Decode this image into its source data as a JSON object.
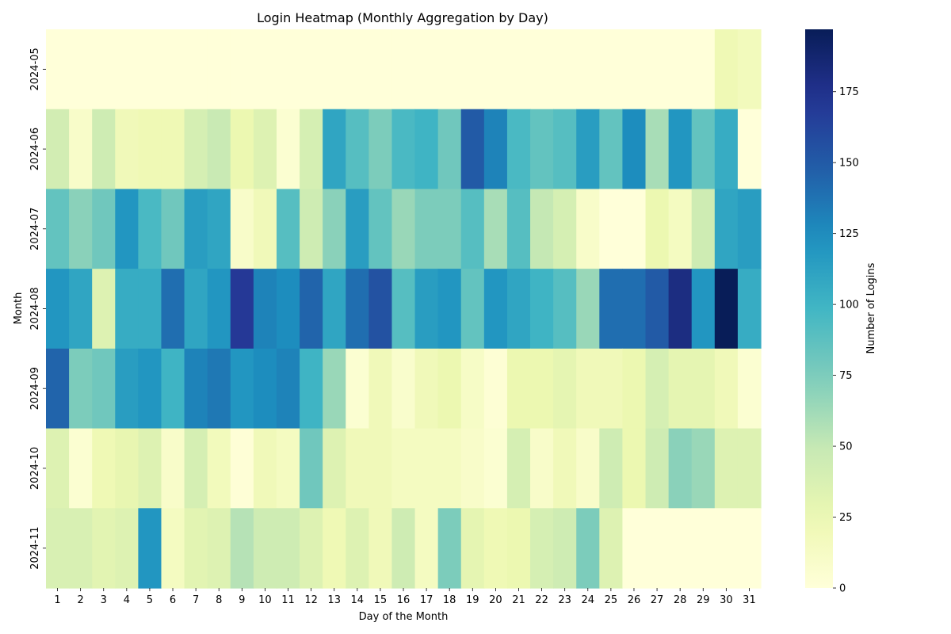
{
  "chart_data": {
    "type": "heatmap",
    "title": "Login Heatmap (Monthly Aggregation by Day)",
    "xlabel": "Day of the Month",
    "ylabel": "Month",
    "colorbar_label": "Number of Logins",
    "colormap": "YlGnBu",
    "vmin": 0,
    "vmax": 197,
    "colorbar_ticks": [
      "0",
      "25",
      "50",
      "75",
      "100",
      "125",
      "150",
      "175"
    ],
    "x_categories": [
      "1",
      "2",
      "3",
      "4",
      "5",
      "6",
      "7",
      "8",
      "9",
      "10",
      "11",
      "12",
      "13",
      "14",
      "15",
      "16",
      "17",
      "18",
      "19",
      "20",
      "21",
      "22",
      "23",
      "24",
      "25",
      "26",
      "27",
      "28",
      "29",
      "30",
      "31"
    ],
    "y_categories": [
      "2024-05",
      "2024-06",
      "2024-07",
      "2024-08",
      "2024-09",
      "2024-10",
      "2024-11"
    ],
    "values": [
      [
        0,
        0,
        0,
        0,
        0,
        0,
        0,
        0,
        0,
        0,
        0,
        0,
        0,
        0,
        0,
        0,
        0,
        0,
        0,
        0,
        0,
        0,
        0,
        0,
        0,
        0,
        0,
        0,
        0,
        22,
        18
      ],
      [
        42,
        10,
        45,
        20,
        22,
        22,
        40,
        48,
        25,
        35,
        5,
        40,
        110,
        90,
        75,
        95,
        100,
        80,
        150,
        130,
        95,
        85,
        90,
        115,
        85,
        125,
        60,
        120,
        85,
        105,
        0
      ],
      [
        85,
        70,
        80,
        120,
        95,
        80,
        115,
        110,
        10,
        20,
        90,
        45,
        70,
        115,
        85,
        65,
        75,
        75,
        90,
        60,
        90,
        50,
        40,
        10,
        0,
        0,
        25,
        15,
        45,
        110,
        115
      ],
      [
        120,
        110,
        35,
        105,
        105,
        140,
        110,
        120,
        170,
        130,
        125,
        145,
        110,
        140,
        155,
        90,
        115,
        120,
        85,
        120,
        110,
        100,
        90,
        65,
        140,
        140,
        150,
        180,
        120,
        197,
        105
      ],
      [
        145,
        75,
        80,
        115,
        120,
        100,
        130,
        135,
        120,
        125,
        130,
        100,
        65,
        5,
        20,
        8,
        20,
        25,
        12,
        3,
        25,
        25,
        30,
        20,
        20,
        25,
        40,
        30,
        30,
        20,
        5
      ],
      [
        35,
        5,
        22,
        28,
        35,
        10,
        40,
        18,
        2,
        20,
        15,
        80,
        35,
        20,
        20,
        15,
        15,
        15,
        10,
        5,
        40,
        10,
        20,
        10,
        45,
        25,
        45,
        70,
        65,
        35,
        35
      ],
      [
        38,
        38,
        32,
        35,
        120,
        15,
        32,
        35,
        55,
        45,
        45,
        35,
        22,
        35,
        20,
        45,
        15,
        75,
        30,
        22,
        25,
        40,
        45,
        75,
        35,
        0,
        0,
        0,
        0,
        0,
        0
      ]
    ]
  }
}
